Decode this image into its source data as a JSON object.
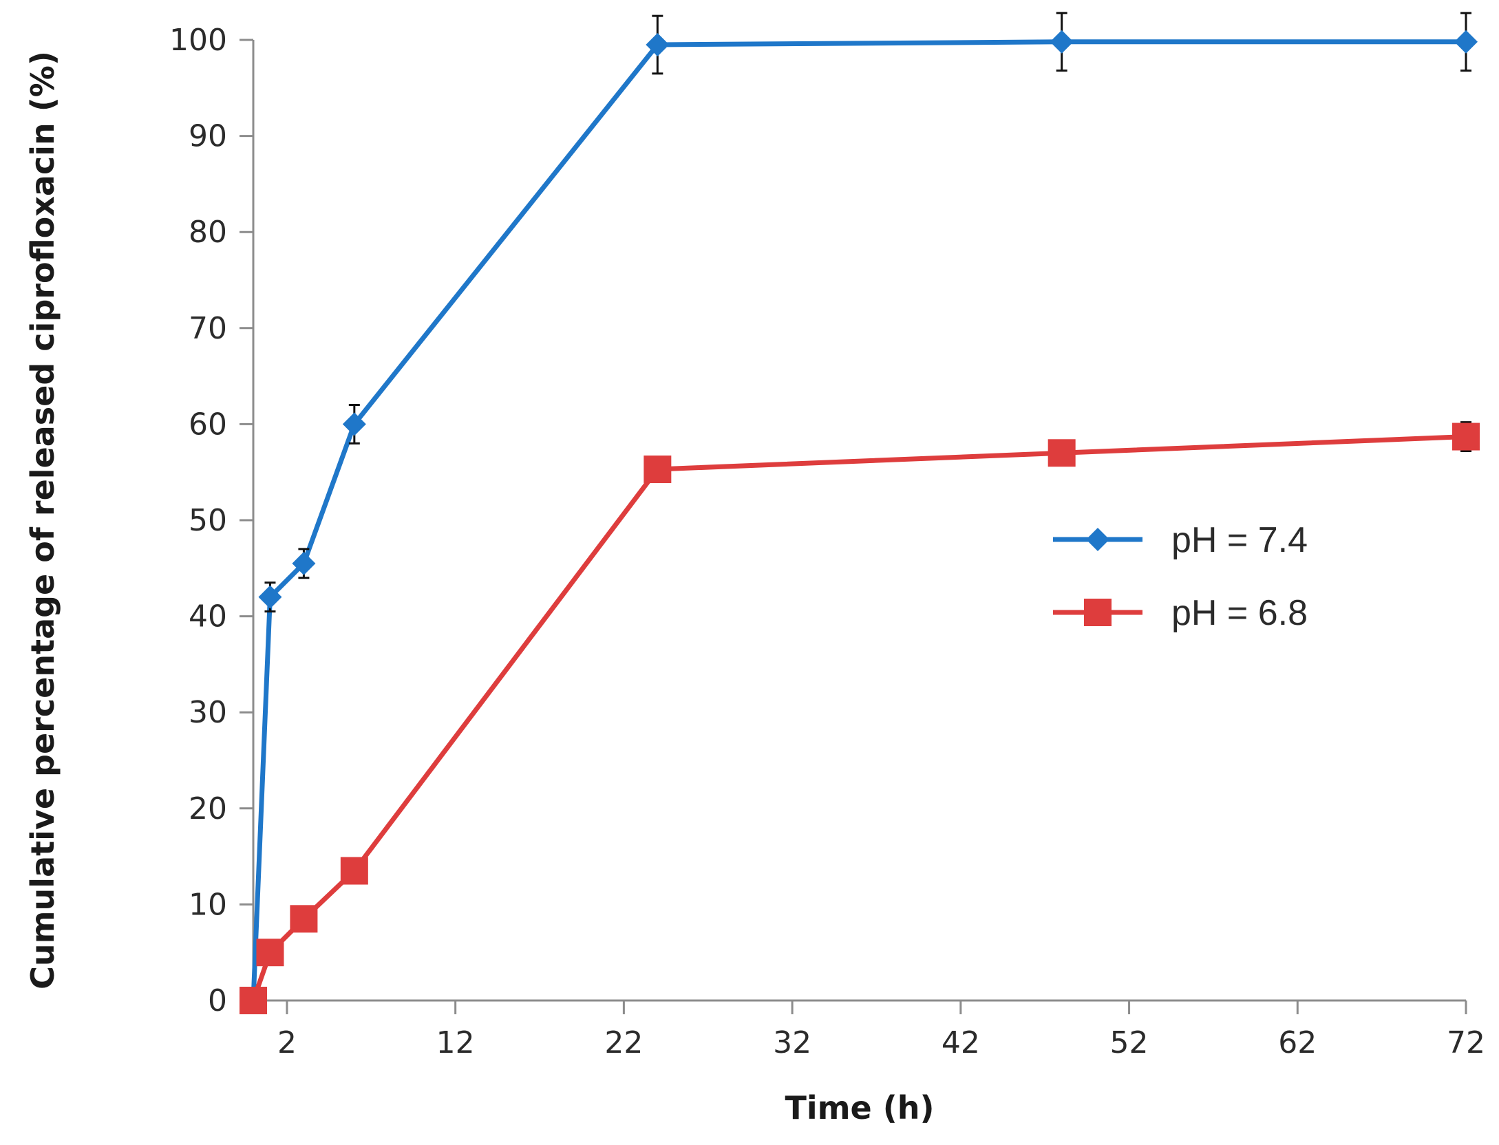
{
  "chart_data": {
    "type": "line",
    "title": "",
    "xlabel": "Time (h)",
    "ylabel": "Cumulative percentage of released ciprofloxacin (%)",
    "xlim": [
      0,
      72
    ],
    "ylim": [
      0,
      100
    ],
    "xticks": [
      2,
      12,
      22,
      32,
      42,
      52,
      62,
      72
    ],
    "yticks": [
      0,
      10,
      20,
      30,
      40,
      50,
      60,
      70,
      80,
      90,
      100
    ],
    "grid": false,
    "legend_position": "center-right",
    "series": [
      {
        "name": "pH = 7.4",
        "color": "#1f77c9",
        "marker": "diamond",
        "x": [
          0,
          1,
          3,
          6,
          24,
          48,
          72
        ],
        "y": [
          0,
          42,
          45.5,
          60,
          99.5,
          99.8,
          99.8
        ],
        "error": [
          0,
          1.5,
          1.5,
          2,
          3,
          3,
          3
        ]
      },
      {
        "name": "pH = 6.8",
        "color": "#de3d3d",
        "marker": "square",
        "x": [
          0,
          1,
          3,
          6,
          24,
          48,
          72
        ],
        "y": [
          0,
          5,
          8.5,
          13.5,
          55.3,
          57,
          58.7
        ],
        "error": [
          0,
          0.5,
          0.5,
          0.8,
          1.2,
          1.2,
          1.5
        ]
      }
    ]
  }
}
